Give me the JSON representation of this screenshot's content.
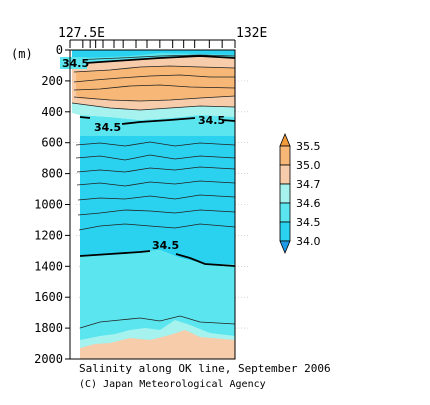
{
  "chart_data": {
    "type": "contour",
    "title": "Salinity along OK line, September 2006",
    "credit": "(C) Japan Meteorological Agency",
    "xlabel": "",
    "ylabel": "(m)",
    "x_ticks_labeled": [
      "127.5E",
      "132E"
    ],
    "x_range": [
      127.5,
      132.0
    ],
    "y_ticks": [
      "0",
      "200",
      "400",
      "600",
      "800",
      "1000",
      "1200",
      "1400",
      "1600",
      "1800",
      "2000"
    ],
    "ylim": [
      2000,
      0
    ],
    "grid": true,
    "contour_labels": [
      "34.5",
      "34.5",
      "34.5",
      "34.5"
    ],
    "colorbar": {
      "position": "right",
      "levels": [
        "35.5",
        "35.0",
        "34.7",
        "34.6",
        "34.5",
        "34.0"
      ],
      "colors": {
        "above_35_5": "#f39a3a",
        "35_0_to_35_5": "#f7b877",
        "34_7_to_35_0": "#f6ccaa",
        "34_6_to_34_7": "#a6f2ee",
        "34_5_to_34_6": "#5be6ef",
        "34_0_to_34_5": "#2ad2ef",
        "below_34_0": "#1f9ae6"
      }
    }
  }
}
